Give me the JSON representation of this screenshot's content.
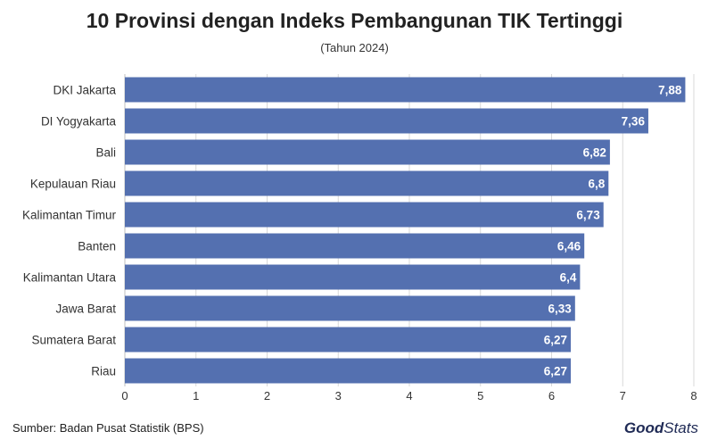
{
  "chart_data": {
    "type": "bar",
    "orientation": "horizontal",
    "title": "10 Provinsi dengan Indeks Pembangunan TIK Tertinggi",
    "subtitle": "(Tahun 2024)",
    "categories": [
      "DKI Jakarta",
      "DI Yogyakarta",
      "Bali",
      "Kepulauan Riau",
      "Kalimantan Timur",
      "Banten",
      "Kalimantan Utara",
      "Jawa Barat",
      "Sumatera Barat",
      "Riau"
    ],
    "values": [
      7.88,
      7.36,
      6.82,
      6.8,
      6.73,
      6.46,
      6.4,
      6.33,
      6.27,
      6.27
    ],
    "value_labels": [
      "7,88",
      "7,36",
      "6,82",
      "6,8",
      "6,73",
      "6,46",
      "6,4",
      "6,33",
      "6,27",
      "6,27"
    ],
    "xlim": [
      0,
      8
    ],
    "xticks": [
      0,
      1,
      2,
      3,
      4,
      5,
      6,
      7,
      8
    ],
    "xlabel": "",
    "ylabel": "",
    "grid": "vertical",
    "bar_color": "#5470b0",
    "label_color": "#ffffff"
  },
  "footer": {
    "source": "Sumber: Badan Pusat Statistik (BPS)",
    "brand_part1": "Good",
    "brand_part2": "Stats"
  }
}
